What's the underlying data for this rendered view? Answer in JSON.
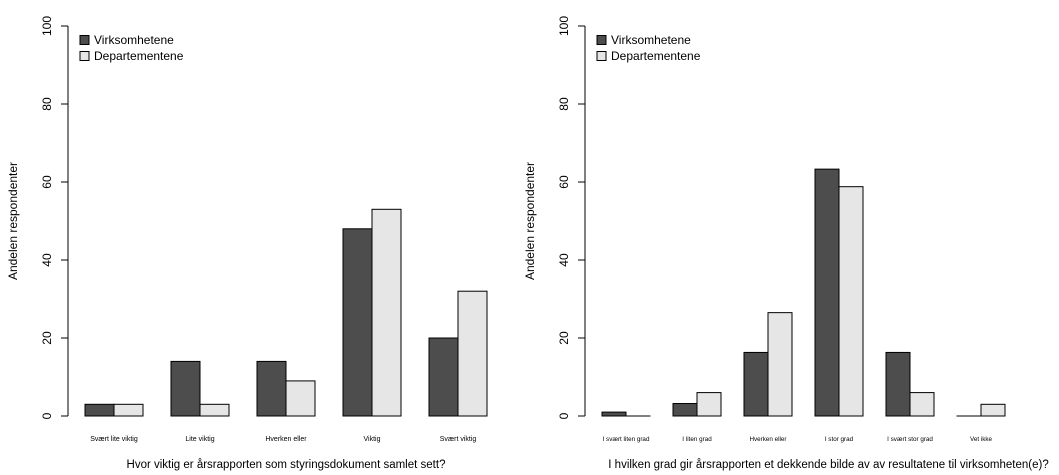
{
  "chart_data": [
    {
      "type": "bar",
      "title": "",
      "xlabel": "Hvor viktig er årsrapporten som styringsdokument samlet sett?",
      "ylabel": "Andelen respondenter",
      "ylim": [
        0,
        100
      ],
      "yticks": [
        "0",
        "20",
        "40",
        "60",
        "80",
        "100"
      ],
      "grid": false,
      "legend": "top-left",
      "categories": [
        "Svært lite viktig",
        "Lite viktig",
        "Hverken eller",
        "Viktig",
        "Svært viktig"
      ],
      "series": [
        {
          "name": "Virksomhetene",
          "color": "#4d4d4d",
          "values": [
            3,
            14,
            14,
            48,
            20
          ]
        },
        {
          "name": "Departementene",
          "color": "#e6e6e6",
          "values": [
            3,
            3,
            9,
            53,
            32
          ]
        }
      ]
    },
    {
      "type": "bar",
      "title": "",
      "xlabel": "I hvilken grad gir årsrapporten et dekkende bilde av av resultatene til virksomheten(e)?",
      "ylabel": "Andelen respondenter",
      "ylim": [
        0,
        100
      ],
      "yticks": [
        "0",
        "20",
        "40",
        "60",
        "80",
        "100"
      ],
      "grid": false,
      "legend": "top-left",
      "categories": [
        "I svært liten grad",
        "I liten grad",
        "Hverken eller",
        "I stor grad",
        "I svært stor grad",
        "Vet ikke"
      ],
      "series": [
        {
          "name": "Virksomhetene",
          "color": "#4d4d4d",
          "values": [
            1,
            3.2,
            16.3,
            63.3,
            16.3,
            0
          ]
        },
        {
          "name": "Departementene",
          "color": "#e6e6e6",
          "values": [
            0,
            6,
            26.5,
            58.8,
            6,
            3
          ]
        }
      ]
    }
  ]
}
